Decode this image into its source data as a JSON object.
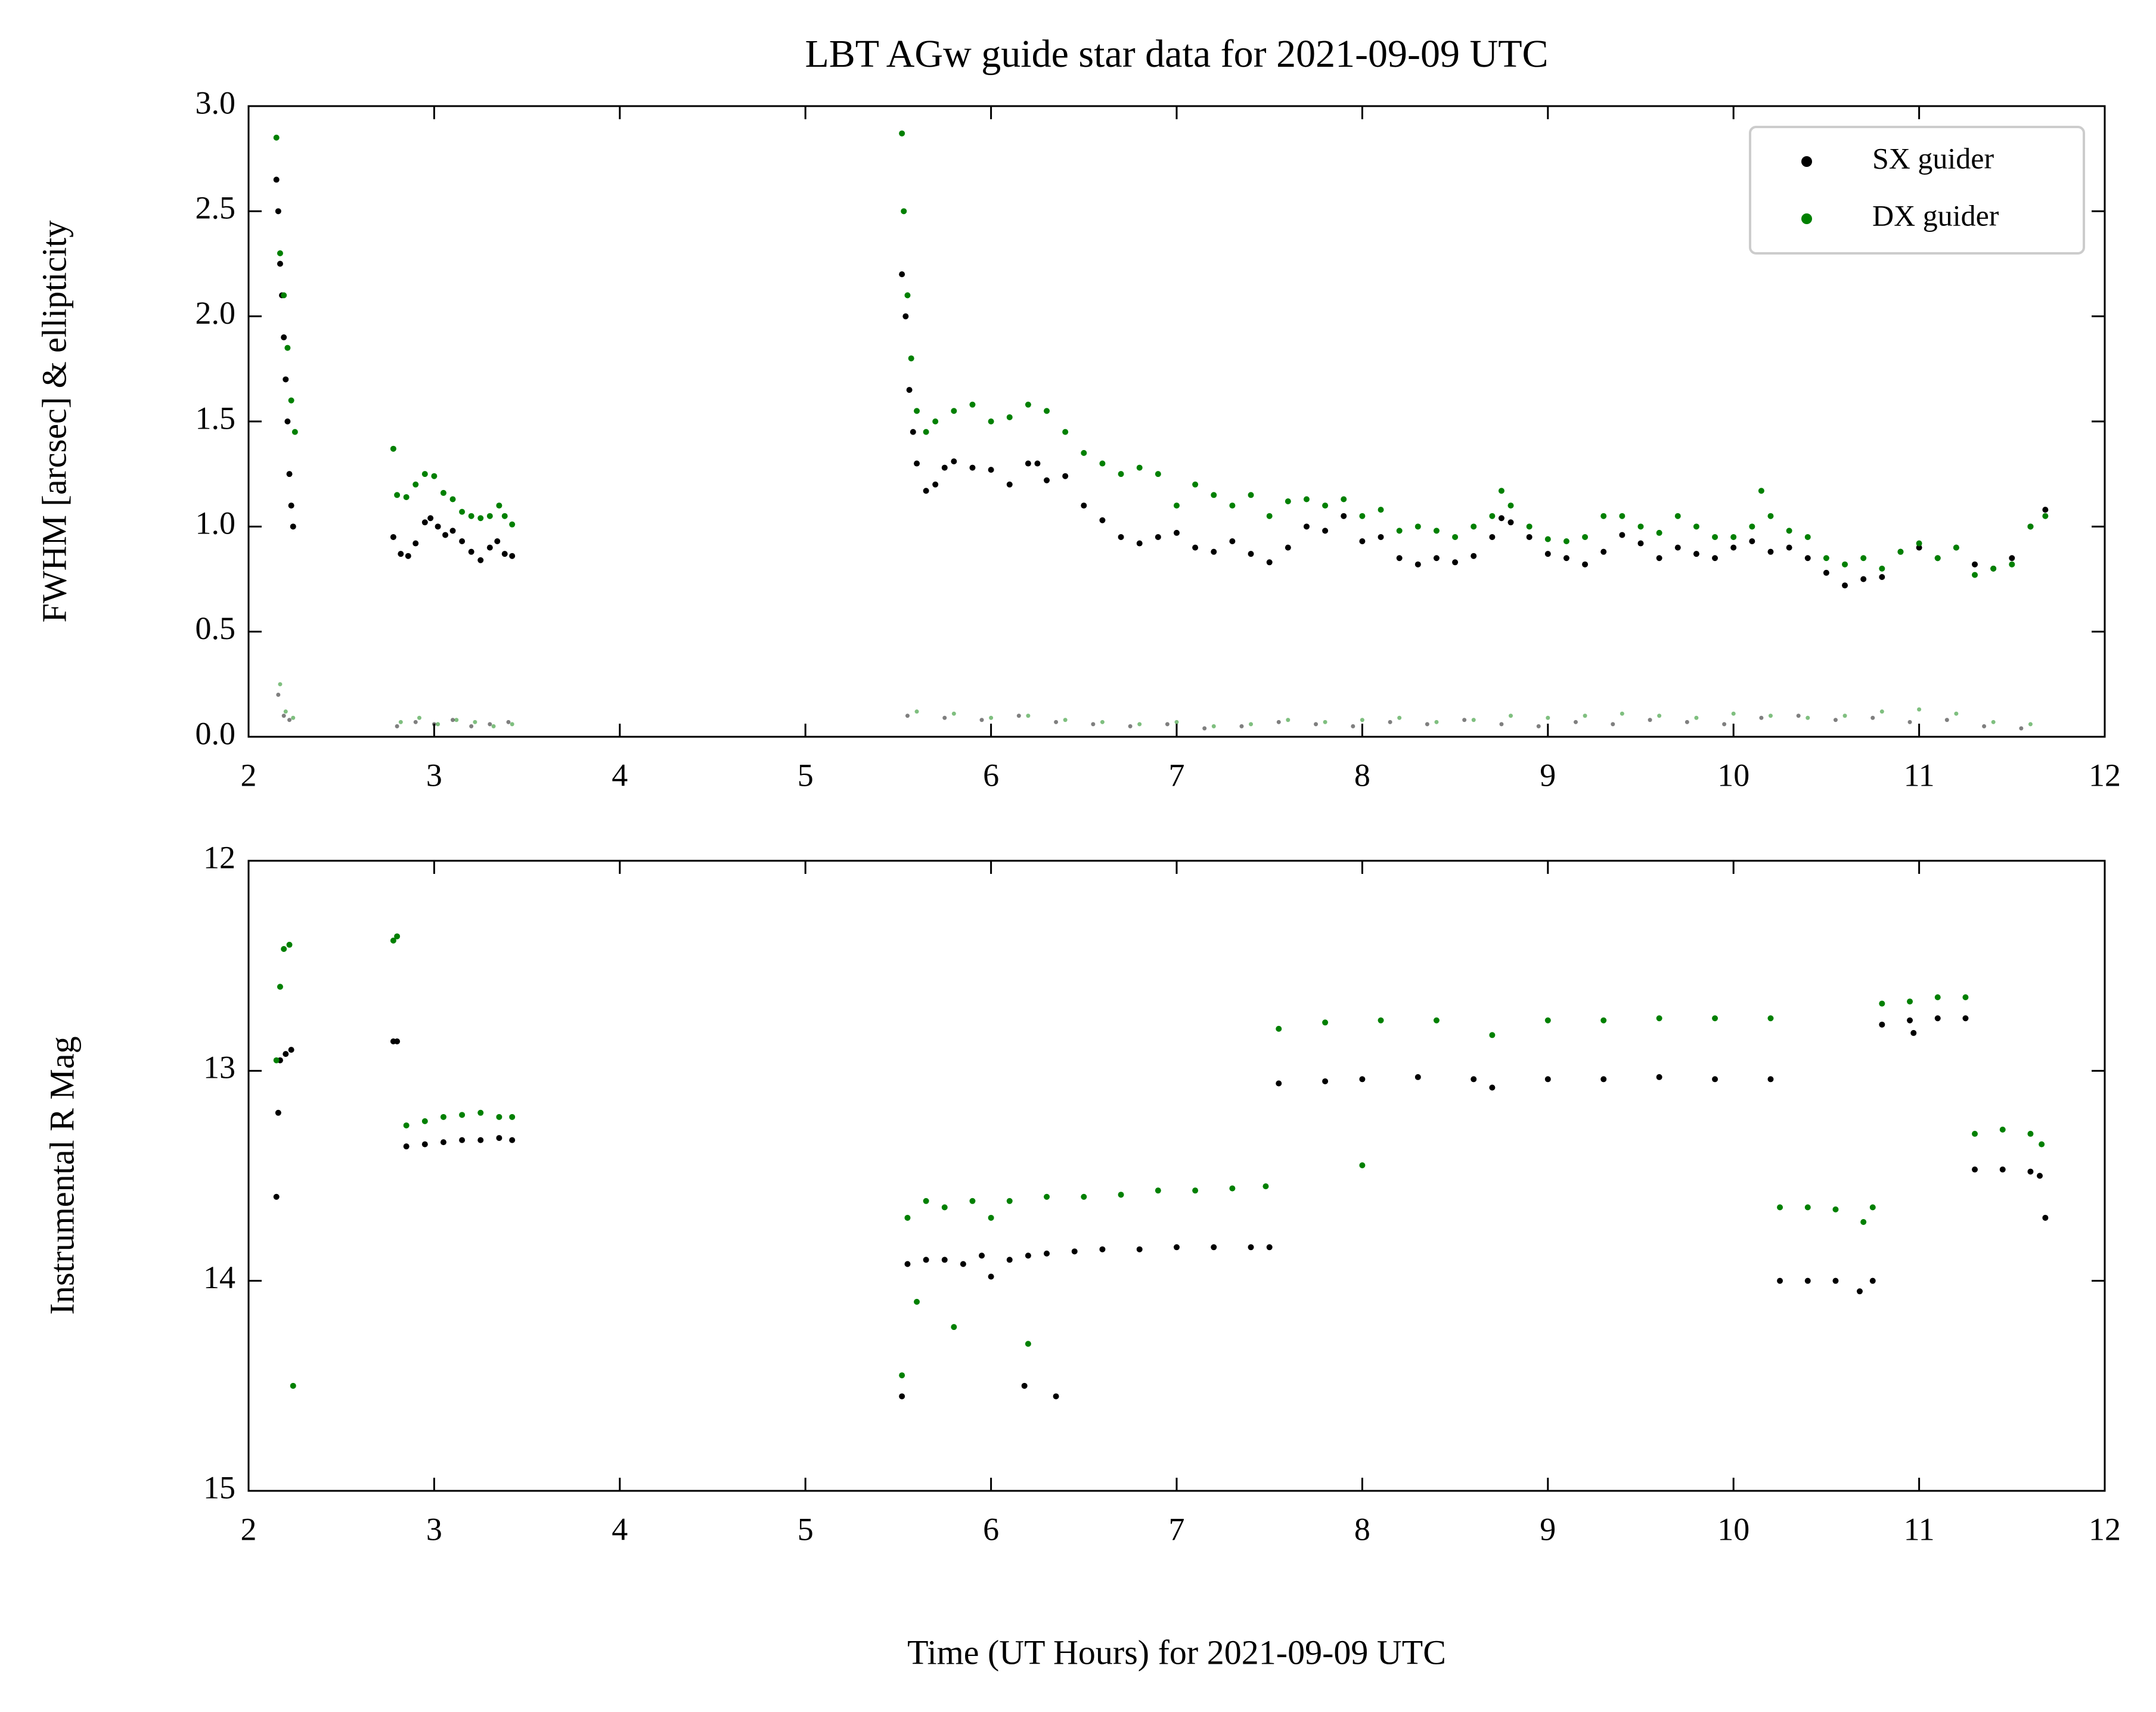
{
  "chart_data": [
    {
      "type": "scatter",
      "title": "LBT AGw guide star data for 2021-09-09 UTC",
      "ylabel": "FWHM [arcsec] & ellipticity",
      "xlim": [
        2,
        12
      ],
      "xticks": [
        2,
        3,
        4,
        5,
        6,
        7,
        8,
        9,
        10,
        11,
        12
      ],
      "ylim": [
        0,
        3
      ],
      "yticks": [
        {
          "value": 0,
          "label": "0.0"
        },
        {
          "value": 0.5,
          "label": "0.5"
        },
        {
          "value": 1,
          "label": "1.0"
        },
        {
          "value": 1.5,
          "label": "1.5"
        },
        {
          "value": 2,
          "label": "2.0"
        },
        {
          "value": 2.5,
          "label": "2.5"
        },
        {
          "value": 3,
          "label": "3.0"
        }
      ],
      "grid": false,
      "legend": "upper right",
      "series": [
        {
          "name": "SX guider",
          "color": "#000000",
          "x": [
            2.15,
            2.16,
            2.17,
            2.18,
            2.19,
            2.2,
            2.21,
            2.22,
            2.23,
            2.24,
            2.78,
            2.82,
            2.86,
            2.9,
            2.95,
            2.98,
            3.02,
            3.06,
            3.1,
            3.15,
            3.2,
            3.25,
            3.3,
            3.34,
            3.38,
            3.42,
            5.52,
            5.54,
            5.56,
            5.58,
            5.6,
            5.65,
            5.7,
            5.75,
            5.8,
            5.9,
            6.0,
            6.1,
            6.2,
            6.25,
            6.3,
            6.4,
            6.5,
            6.6,
            6.7,
            6.8,
            6.9,
            7.0,
            7.1,
            7.2,
            7.3,
            7.4,
            7.5,
            7.6,
            7.7,
            7.8,
            7.9,
            8.0,
            8.1,
            8.2,
            8.3,
            8.4,
            8.5,
            8.6,
            8.7,
            8.75,
            8.8,
            8.9,
            9.0,
            9.1,
            9.2,
            9.3,
            9.4,
            9.5,
            9.6,
            9.7,
            9.8,
            9.9,
            10.0,
            10.1,
            10.2,
            10.3,
            10.4,
            10.5,
            10.6,
            10.7,
            10.8,
            10.9,
            11.0,
            11.1,
            11.2,
            11.3,
            11.4,
            11.5,
            11.6,
            11.68
          ],
          "values": [
            2.65,
            2.5,
            2.25,
            2.1,
            1.9,
            1.7,
            1.5,
            1.25,
            1.1,
            1.0,
            0.95,
            0.87,
            0.86,
            0.92,
            1.02,
            1.04,
            1.0,
            0.96,
            0.98,
            0.93,
            0.88,
            0.84,
            0.9,
            0.93,
            0.87,
            0.86,
            2.2,
            2.0,
            1.65,
            1.45,
            1.3,
            1.17,
            1.2,
            1.28,
            1.31,
            1.28,
            1.27,
            1.2,
            1.3,
            1.3,
            1.22,
            1.24,
            1.1,
            1.03,
            0.95,
            0.92,
            0.95,
            0.97,
            0.9,
            0.88,
            0.93,
            0.87,
            0.83,
            0.9,
            1.0,
            0.98,
            1.05,
            0.93,
            0.95,
            0.85,
            0.82,
            0.85,
            0.83,
            0.86,
            0.95,
            1.04,
            1.02,
            0.95,
            0.87,
            0.85,
            0.82,
            0.88,
            0.96,
            0.92,
            0.85,
            0.9,
            0.87,
            0.85,
            0.9,
            0.93,
            0.88,
            0.9,
            0.85,
            0.78,
            0.72,
            0.75,
            0.76,
            0.88,
            0.9,
            0.85,
            0.9,
            0.82,
            0.8,
            0.85,
            1.0,
            1.08
          ]
        },
        {
          "name": "DX guider",
          "color": "#008000",
          "x": [
            2.15,
            2.17,
            2.19,
            2.21,
            2.23,
            2.25,
            2.78,
            2.8,
            2.85,
            2.9,
            2.95,
            3.0,
            3.05,
            3.1,
            3.15,
            3.2,
            3.25,
            3.3,
            3.35,
            3.38,
            3.42,
            5.52,
            5.53,
            5.55,
            5.57,
            5.6,
            5.65,
            5.7,
            5.8,
            5.9,
            6.0,
            6.1,
            6.2,
            6.3,
            6.4,
            6.5,
            6.6,
            6.7,
            6.8,
            6.9,
            7.0,
            7.1,
            7.2,
            7.3,
            7.4,
            7.5,
            7.6,
            7.7,
            7.8,
            7.9,
            8.0,
            8.1,
            8.2,
            8.3,
            8.4,
            8.5,
            8.6,
            8.7,
            8.75,
            8.8,
            8.9,
            9.0,
            9.1,
            9.2,
            9.3,
            9.4,
            9.5,
            9.6,
            9.7,
            9.8,
            9.9,
            10.0,
            10.1,
            10.15,
            10.2,
            10.3,
            10.4,
            10.5,
            10.6,
            10.7,
            10.8,
            10.9,
            11.0,
            11.1,
            11.2,
            11.3,
            11.4,
            11.5,
            11.6,
            11.68
          ],
          "values": [
            2.85,
            2.3,
            2.1,
            1.85,
            1.6,
            1.45,
            1.37,
            1.15,
            1.14,
            1.2,
            1.25,
            1.24,
            1.16,
            1.13,
            1.07,
            1.05,
            1.04,
            1.05,
            1.1,
            1.05,
            1.01,
            2.87,
            2.5,
            2.1,
            1.8,
            1.55,
            1.45,
            1.5,
            1.55,
            1.58,
            1.5,
            1.52,
            1.58,
            1.55,
            1.45,
            1.35,
            1.3,
            1.25,
            1.28,
            1.25,
            1.1,
            1.2,
            1.15,
            1.1,
            1.15,
            1.05,
            1.12,
            1.13,
            1.1,
            1.13,
            1.05,
            1.08,
            0.98,
            1.0,
            0.98,
            0.95,
            1.0,
            1.05,
            1.17,
            1.1,
            1.0,
            0.94,
            0.93,
            0.95,
            1.05,
            1.05,
            1.0,
            0.97,
            1.05,
            1.0,
            0.95,
            0.95,
            1.0,
            1.17,
            1.05,
            0.98,
            0.95,
            0.85,
            0.82,
            0.85,
            0.8,
            0.88,
            0.92,
            0.85,
            0.9,
            0.77,
            0.8,
            0.82,
            1.0,
            1.05
          ]
        },
        {
          "color": "#000000",
          "alpha": 0.5,
          "x": [
            2.16,
            2.19,
            2.22,
            2.8,
            2.9,
            3.0,
            3.1,
            3.2,
            3.3,
            3.4,
            5.55,
            5.75,
            5.95,
            6.15,
            6.35,
            6.55,
            6.75,
            6.95,
            7.15,
            7.35,
            7.55,
            7.75,
            7.95,
            8.15,
            8.35,
            8.55,
            8.75,
            8.95,
            9.15,
            9.35,
            9.55,
            9.75,
            9.95,
            10.15,
            10.35,
            10.55,
            10.75,
            10.95,
            11.15,
            11.35,
            11.55
          ],
          "values": [
            0.2,
            0.1,
            0.08,
            0.05,
            0.07,
            0.06,
            0.08,
            0.05,
            0.06,
            0.07,
            0.1,
            0.09,
            0.08,
            0.1,
            0.07,
            0.06,
            0.05,
            0.06,
            0.04,
            0.05,
            0.07,
            0.06,
            0.05,
            0.07,
            0.06,
            0.08,
            0.06,
            0.05,
            0.07,
            0.06,
            0.08,
            0.07,
            0.06,
            0.09,
            0.1,
            0.08,
            0.09,
            0.07,
            0.08,
            0.05,
            0.04
          ]
        },
        {
          "color": "#008000",
          "alpha": 0.5,
          "x": [
            2.17,
            2.2,
            2.24,
            2.82,
            2.92,
            3.02,
            3.12,
            3.22,
            3.32,
            3.42,
            5.6,
            5.8,
            6.0,
            6.2,
            6.4,
            6.6,
            6.8,
            7.0,
            7.2,
            7.4,
            7.6,
            7.8,
            8.0,
            8.2,
            8.4,
            8.6,
            8.8,
            9.0,
            9.2,
            9.4,
            9.6,
            9.8,
            10.0,
            10.2,
            10.4,
            10.6,
            10.8,
            11.0,
            11.2,
            11.4,
            11.6
          ],
          "values": [
            0.25,
            0.12,
            0.09,
            0.07,
            0.09,
            0.06,
            0.08,
            0.07,
            0.05,
            0.06,
            0.12,
            0.11,
            0.09,
            0.1,
            0.08,
            0.07,
            0.06,
            0.07,
            0.05,
            0.06,
            0.08,
            0.07,
            0.08,
            0.09,
            0.07,
            0.08,
            0.1,
            0.09,
            0.1,
            0.11,
            0.1,
            0.09,
            0.11,
            0.1,
            0.09,
            0.1,
            0.12,
            0.13,
            0.11,
            0.07,
            0.06
          ]
        }
      ]
    },
    {
      "type": "scatter",
      "ylabel": "Instrumental R Mag",
      "xlabel": "Time (UT Hours) for 2021-09-09 UTC",
      "xlim": [
        2,
        12
      ],
      "xticks": [
        2,
        3,
        4,
        5,
        6,
        7,
        8,
        9,
        10,
        11,
        12
      ],
      "ylim": [
        15,
        12
      ],
      "yticks": [
        12,
        13,
        14,
        15
      ],
      "grid": false,
      "series": [
        {
          "color": "#000000",
          "x": [
            2.15,
            2.16,
            2.17,
            2.2,
            2.23,
            2.78,
            2.8,
            2.85,
            2.95,
            3.05,
            3.15,
            3.25,
            3.35,
            3.42,
            5.52,
            5.55,
            5.65,
            5.75,
            5.85,
            5.95,
            6.0,
            6.1,
            6.18,
            6.2,
            6.3,
            6.35,
            6.45,
            6.6,
            6.8,
            7.0,
            7.2,
            7.4,
            7.5,
            7.55,
            7.8,
            8.0,
            8.3,
            8.6,
            8.7,
            9.0,
            9.3,
            9.6,
            9.9,
            10.2,
            10.25,
            10.4,
            10.55,
            10.68,
            10.75,
            10.8,
            10.95,
            10.97,
            11.1,
            11.25,
            11.3,
            11.45,
            11.6,
            11.65,
            11.68
          ],
          "values": [
            13.6,
            13.2,
            12.95,
            12.92,
            12.9,
            12.86,
            12.86,
            13.36,
            13.35,
            13.34,
            13.33,
            13.33,
            13.32,
            13.33,
            14.55,
            13.92,
            13.9,
            13.9,
            13.92,
            13.88,
            13.98,
            13.9,
            14.5,
            13.88,
            13.87,
            14.55,
            13.86,
            13.85,
            13.85,
            13.84,
            13.84,
            13.84,
            13.84,
            13.06,
            13.05,
            13.04,
            13.03,
            13.04,
            13.08,
            13.04,
            13.04,
            13.03,
            13.04,
            13.04,
            14.0,
            14.0,
            14.0,
            14.05,
            14.0,
            12.78,
            12.76,
            12.82,
            12.75,
            12.75,
            13.47,
            13.47,
            13.48,
            13.5,
            13.7
          ]
        },
        {
          "color": "#008000",
          "x": [
            2.15,
            2.17,
            2.19,
            2.22,
            2.24,
            2.78,
            2.8,
            2.85,
            2.95,
            3.05,
            3.15,
            3.25,
            3.35,
            3.42,
            5.52,
            5.55,
            5.6,
            5.65,
            5.75,
            5.8,
            5.9,
            6.0,
            6.1,
            6.2,
            6.3,
            6.5,
            6.7,
            6.9,
            7.1,
            7.3,
            7.48,
            7.55,
            7.8,
            8.0,
            8.1,
            8.4,
            8.7,
            9.0,
            9.3,
            9.6,
            9.9,
            10.2,
            10.25,
            10.4,
            10.55,
            10.7,
            10.75,
            10.8,
            10.95,
            11.1,
            11.25,
            11.3,
            11.45,
            11.6,
            11.66
          ],
          "values": [
            12.95,
            12.6,
            12.42,
            12.4,
            14.5,
            12.38,
            12.36,
            13.26,
            13.24,
            13.22,
            13.21,
            13.2,
            13.22,
            13.22,
            14.45,
            13.7,
            14.1,
            13.62,
            13.65,
            14.22,
            13.62,
            13.7,
            13.62,
            14.3,
            13.6,
            13.6,
            13.59,
            13.57,
            13.57,
            13.56,
            13.55,
            12.8,
            12.77,
            13.45,
            12.76,
            12.76,
            12.83,
            12.76,
            12.76,
            12.75,
            12.75,
            12.75,
            13.65,
            13.65,
            13.66,
            13.72,
            13.65,
            12.68,
            12.67,
            12.65,
            12.65,
            13.3,
            13.28,
            13.3,
            13.35
          ]
        }
      ]
    }
  ]
}
